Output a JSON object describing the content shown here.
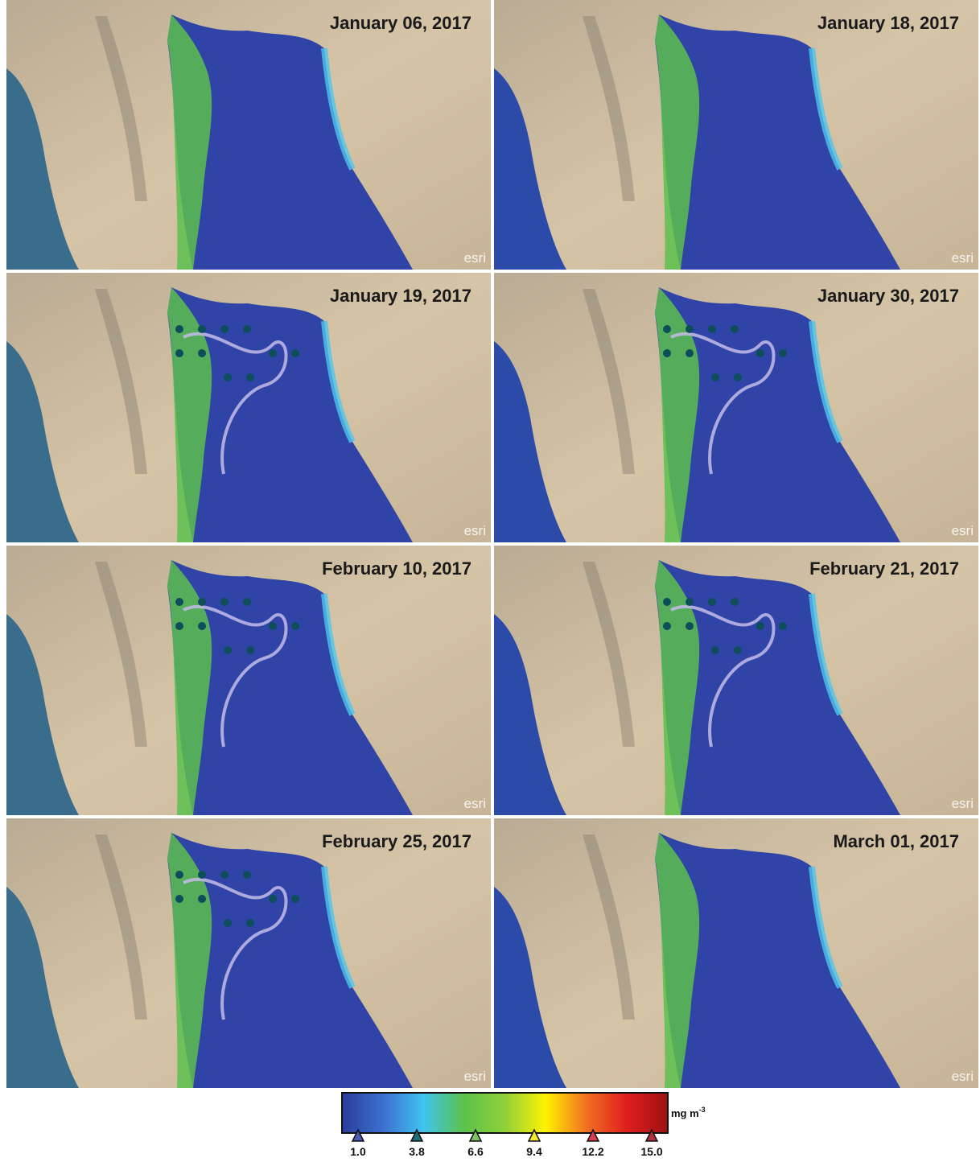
{
  "panels": [
    {
      "date": "January 06, 2017"
    },
    {
      "date": "January 18, 2017"
    },
    {
      "date": "January 19, 2017"
    },
    {
      "date": "January 30, 2017"
    },
    {
      "date": "February 10, 2017"
    },
    {
      "date": "February 21, 2017"
    },
    {
      "date": "February 25, 2017"
    },
    {
      "date": "March 01, 2017"
    }
  ],
  "attribution": "esri",
  "colorbar": {
    "unit": {
      "base": "mg m",
      "exponent": "-3"
    },
    "range": [
      1,
      15
    ],
    "colors": [
      "#2a3c9c",
      "#3b6fd0",
      "#3fc3f0",
      "#5cc24a",
      "#8fd03a",
      "#fff200",
      "#f07020",
      "#e01e1e",
      "#9e1212"
    ],
    "ticks": [
      {
        "value": 1,
        "label": "1.0"
      },
      3.8,
      6.6,
      9.4,
      12.2,
      {
        "value": 15,
        "label": "15.0"
      }
    ],
    "marker_colors": [
      "#4a5bb0",
      "#1c6f78",
      "#7fc060",
      "#f5e82a",
      "#d84050",
      "#b03040"
    ]
  }
}
